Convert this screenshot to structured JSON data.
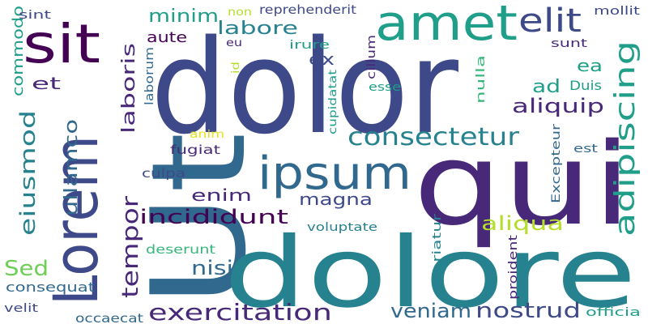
{
  "canvas": {
    "background": "#ffffff"
  },
  "palette": {
    "deep_purple": "#440154",
    "indigo": "#482878",
    "slate_blue": "#3e4989",
    "steel_blue": "#31688e",
    "teal": "#26828e",
    "sea_green": "#1f9e89",
    "green": "#35b779",
    "lime": "#6ece58",
    "yellow_green": "#b5de2b",
    "yellow": "#e7e419"
  },
  "words": [
    {
      "text": "dolor",
      "color": "slate_blue"
    },
    {
      "text": "Ut",
      "color": "steel_blue"
    },
    {
      "text": "dolore",
      "color": "teal"
    },
    {
      "text": "qui",
      "color": "indigo"
    },
    {
      "text": "amet",
      "color": "sea_green"
    },
    {
      "text": "sit",
      "color": "deep_purple"
    },
    {
      "text": "Lorem",
      "color": "slate_blue"
    },
    {
      "text": "ipsum",
      "color": "steel_blue"
    },
    {
      "text": "elit",
      "color": "slate_blue"
    },
    {
      "text": "consectetur",
      "color": "teal"
    },
    {
      "text": "adipiscing",
      "color": "sea_green"
    },
    {
      "text": "tempor",
      "color": "indigo"
    },
    {
      "text": "eiusmod",
      "color": "teal"
    },
    {
      "text": "exercitation",
      "color": "indigo"
    },
    {
      "text": "veniam",
      "color": "steel_blue"
    },
    {
      "text": "nostrud",
      "color": "slate_blue"
    },
    {
      "text": "incididunt",
      "color": "deep_purple"
    },
    {
      "text": "aliqua",
      "color": "yellow_green"
    },
    {
      "text": "Sed",
      "color": "lime"
    },
    {
      "text": "nisi",
      "color": "steel_blue"
    },
    {
      "text": "magna",
      "color": "slate_blue"
    },
    {
      "text": "enim",
      "color": "indigo"
    },
    {
      "text": "ullamco",
      "color": "steel_blue"
    },
    {
      "text": "laboris",
      "color": "indigo"
    },
    {
      "text": "labore",
      "color": "teal"
    },
    {
      "text": "minim",
      "color": "sea_green"
    },
    {
      "text": "commodo",
      "color": "sea_green"
    },
    {
      "text": "aliquip",
      "color": "indigo"
    },
    {
      "text": "ad",
      "color": "sea_green"
    },
    {
      "text": "ea",
      "color": "sea_green"
    },
    {
      "text": "ex",
      "color": "slate_blue"
    },
    {
      "text": "et",
      "color": "indigo"
    },
    {
      "text": "aute",
      "color": "deep_purple"
    },
    {
      "text": "Duis",
      "color": "sea_green"
    },
    {
      "text": "consequat",
      "color": "steel_blue"
    },
    {
      "text": "fugiat",
      "color": "indigo"
    },
    {
      "text": "culpa",
      "color": "slate_blue"
    },
    {
      "text": "voluptate",
      "color": "teal"
    },
    {
      "text": "deserunt",
      "color": "green"
    },
    {
      "text": "velit",
      "color": "slate_blue"
    },
    {
      "text": "occaecat",
      "color": "steel_blue"
    },
    {
      "text": "officia",
      "color": "sea_green"
    },
    {
      "text": "mollit",
      "color": "slate_blue"
    },
    {
      "text": "sunt",
      "color": "indigo"
    },
    {
      "text": "reprehenderit",
      "color": "slate_blue"
    },
    {
      "text": "non",
      "color": "yellow_green"
    },
    {
      "text": "sint",
      "color": "slate_blue"
    },
    {
      "text": "eu",
      "color": "indigo"
    },
    {
      "text": "irure",
      "color": "sea_green"
    },
    {
      "text": "cillum",
      "color": "indigo"
    },
    {
      "text": "id",
      "color": "yellow_green"
    },
    {
      "text": "laborum",
      "color": "steel_blue"
    },
    {
      "text": "esse",
      "color": "sea_green"
    },
    {
      "text": "nulla",
      "color": "green"
    },
    {
      "text": "cupidatat",
      "color": "sea_green"
    },
    {
      "text": "anim",
      "color": "yellow"
    },
    {
      "text": "est",
      "color": "steel_blue"
    },
    {
      "text": "Excepteur",
      "color": "steel_blue"
    },
    {
      "text": "pariatur",
      "color": "teal"
    },
    {
      "text": "proident",
      "color": "indigo"
    }
  ]
}
